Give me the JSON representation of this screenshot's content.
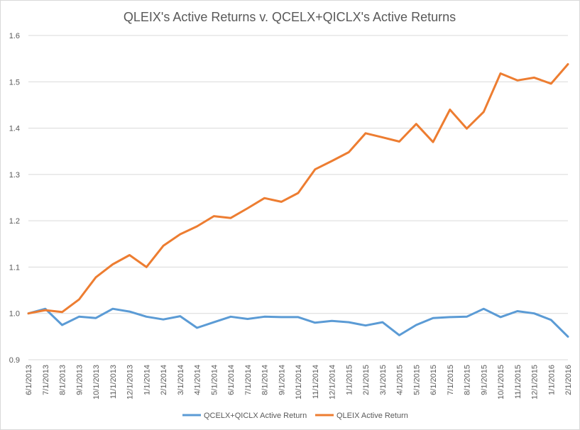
{
  "chart_data": {
    "type": "line",
    "title": "QLEIX's Active Returns v. QCELX+QICLX's Active Returns",
    "xlabel": "",
    "ylabel": "",
    "ylim": [
      0.9,
      1.6
    ],
    "yticks": [
      "0.9",
      "1.0",
      "1.1",
      "1.2",
      "1.3",
      "1.4",
      "1.5",
      "1.6"
    ],
    "grid": true,
    "legend_position": "bottom",
    "categories": [
      "6/1/2013",
      "7/1/2013",
      "8/1/2013",
      "9/1/2013",
      "10/1/2013",
      "11/1/2013",
      "12/1/2013",
      "1/1/2014",
      "2/1/2014",
      "3/1/2014",
      "4/1/2014",
      "5/1/2014",
      "6/1/2014",
      "7/1/2014",
      "8/1/2014",
      "9/1/2014",
      "10/1/2014",
      "11/1/2014",
      "12/1/2014",
      "1/1/2015",
      "2/1/2015",
      "3/1/2015",
      "4/1/2015",
      "5/1/2015",
      "6/1/2015",
      "7/1/2015",
      "8/1/2015",
      "9/1/2015",
      "10/1/2015",
      "11/1/2015",
      "12/1/2015",
      "1/1/2016",
      "2/1/2016"
    ],
    "series": [
      {
        "name": "QCELX+QICLX Active Return",
        "color": "#5b9bd5",
        "values": [
          1.0,
          1.01,
          0.975,
          0.993,
          0.99,
          1.01,
          1.004,
          0.993,
          0.987,
          0.994,
          0.969,
          0.981,
          0.993,
          0.988,
          0.993,
          0.992,
          0.992,
          0.98,
          0.984,
          0.981,
          0.974,
          0.981,
          0.953,
          0.975,
          0.99,
          0.992,
          0.993,
          1.01,
          0.992,
          1.005,
          1.0,
          0.986,
          0.95
        ]
      },
      {
        "name": "QLEIX Active Return",
        "color": "#ed7d31",
        "values": [
          1.0,
          1.007,
          1.003,
          1.03,
          1.078,
          1.106,
          1.126,
          1.1,
          1.146,
          1.171,
          1.188,
          1.21,
          1.206,
          1.227,
          1.249,
          1.241,
          1.26,
          1.311,
          1.329,
          1.348,
          1.389,
          1.38,
          1.371,
          1.409,
          1.37,
          1.44,
          1.399,
          1.435,
          1.518,
          1.503,
          1.509,
          1.496,
          1.538
        ]
      }
    ]
  }
}
